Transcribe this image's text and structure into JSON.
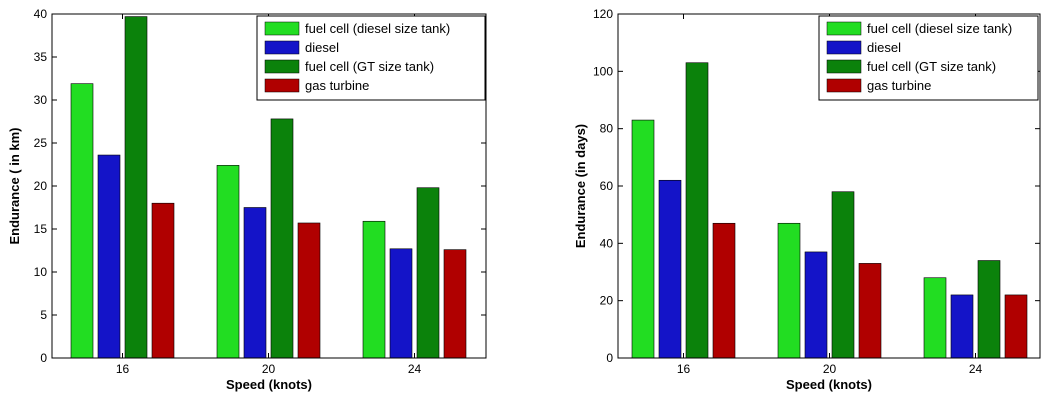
{
  "chart_data": [
    {
      "type": "bar",
      "categories": [
        "16",
        "20",
        "24"
      ],
      "series": [
        {
          "name": "fuel cell (diesel size tank)",
          "values": [
            31.9,
            22.4,
            15.9
          ]
        },
        {
          "name": "diesel",
          "values": [
            23.6,
            17.5,
            12.7
          ]
        },
        {
          "name": "fuel cell (GT size tank)",
          "values": [
            39.7,
            27.8,
            19.8
          ]
        },
        {
          "name": "gas turbine",
          "values": [
            18.0,
            15.7,
            12.6
          ]
        }
      ],
      "xlabel": "Speed (knots)",
      "ylabel": "Endurance ( in km)",
      "ylim": [
        0,
        40
      ],
      "yticks": [
        0,
        5,
        10,
        15,
        20,
        25,
        30,
        35,
        40
      ],
      "grid": false,
      "legend_position": "top-right"
    },
    {
      "type": "bar",
      "categories": [
        "16",
        "20",
        "24"
      ],
      "series": [
        {
          "name": "fuel cell (diesel size tank)",
          "values": [
            83,
            47,
            28
          ]
        },
        {
          "name": "diesel",
          "values": [
            62,
            37,
            22
          ]
        },
        {
          "name": "fuel cell (GT size tank)",
          "values": [
            103,
            58,
            34
          ]
        },
        {
          "name": "gas turbine",
          "values": [
            47,
            33,
            22
          ]
        }
      ],
      "xlabel": "Speed (knots)",
      "ylabel": "Endurance (in days)",
      "ylim": [
        0,
        120
      ],
      "yticks": [
        0,
        20,
        40,
        60,
        80,
        100,
        120
      ],
      "grid": false,
      "legend_position": "top-right"
    }
  ],
  "colors": [
    "#22dd22",
    "#1414c8",
    "#0b820b",
    "#b00000"
  ]
}
